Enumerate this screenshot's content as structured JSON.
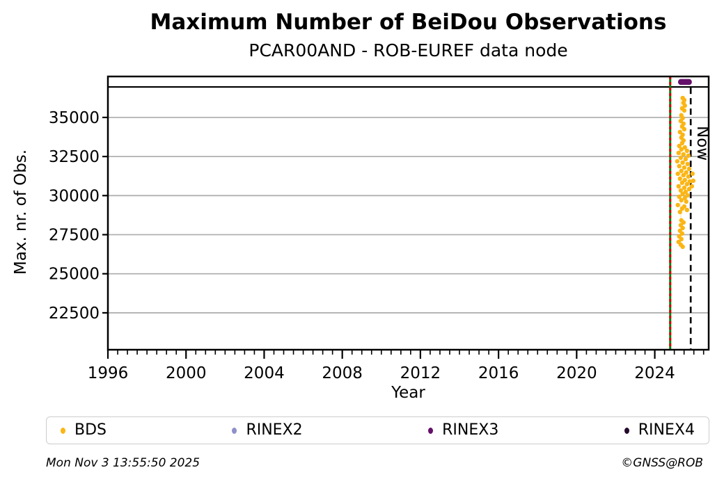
{
  "header": {
    "title": "Maximum Number of BeiDou Observations",
    "subtitle": "PCAR00AND - ROB-EUREF data node"
  },
  "chart_data": {
    "type": "scatter",
    "title": "Maximum Number of BeiDou Observations",
    "subtitle": "PCAR00AND - ROB-EUREF data node",
    "xlabel": "Year",
    "ylabel": "Max. nr. of Obs.",
    "xlim": [
      1996,
      2026.76
    ],
    "ylim": [
      20140,
      37620
    ],
    "x_major_ticks": [
      1996,
      2000,
      2004,
      2008,
      2012,
      2016,
      2020,
      2024
    ],
    "x_minor_step": 0.5,
    "y_ticks": [
      22500,
      25000,
      27500,
      30000,
      32500,
      35000
    ],
    "grid": "horizontal-only",
    "grid_color": "#b0b0b0",
    "frame_color": "#000000",
    "format_band": {
      "divider_value": 36950,
      "rinex3_segment": {
        "start": 2025.19,
        "end": 2025.9,
        "y_value": 37270,
        "color": "#65106a"
      }
    },
    "annotations": {
      "receiver_change_line": {
        "x": 2024.79,
        "solid_color": "#0d7d0d",
        "dash_color": "#d40000"
      },
      "now_line": {
        "x": 2025.84,
        "label": "Now",
        "color": "#000000",
        "style": "dashed"
      }
    },
    "series": [
      {
        "name": "BDS",
        "color": "#fbb615",
        "points": [
          [
            2025.43,
            36245
          ],
          [
            2025.51,
            36110
          ],
          [
            2025.47,
            35935
          ],
          [
            2025.54,
            35755
          ],
          [
            2025.4,
            35580
          ],
          [
            2025.51,
            35445
          ],
          [
            2025.36,
            35135
          ],
          [
            2025.43,
            34955
          ],
          [
            2025.33,
            34775
          ],
          [
            2025.47,
            34600
          ],
          [
            2025.4,
            34420
          ],
          [
            2025.51,
            34245
          ],
          [
            2025.29,
            34065
          ],
          [
            2025.43,
            33890
          ],
          [
            2025.36,
            33710
          ],
          [
            2025.47,
            33530
          ],
          [
            2025.4,
            33355
          ],
          [
            2025.25,
            33175
          ],
          [
            2025.54,
            33085
          ],
          [
            2025.36,
            32955
          ],
          [
            2025.65,
            32865
          ],
          [
            2025.22,
            32730
          ],
          [
            2025.47,
            32640
          ],
          [
            2025.72,
            32555
          ],
          [
            2025.33,
            32420
          ],
          [
            2025.58,
            32330
          ],
          [
            2025.15,
            32195
          ],
          [
            2025.43,
            32110
          ],
          [
            2025.68,
            32020
          ],
          [
            2025.25,
            31885
          ],
          [
            2025.51,
            31795
          ],
          [
            2025.76,
            31710
          ],
          [
            2025.36,
            31575
          ],
          [
            2025.61,
            31485
          ],
          [
            2025.18,
            31395
          ],
          [
            2025.47,
            31305
          ],
          [
            2025.93,
            31400
          ],
          [
            2025.72,
            31220
          ],
          [
            2025.29,
            31085
          ],
          [
            2025.54,
            30995
          ],
          [
            2025.79,
            30905
          ],
          [
            2025.4,
            30820
          ],
          [
            2025.65,
            30730
          ],
          [
            2025.97,
            30950
          ],
          [
            2025.22,
            30595
          ],
          [
            2025.51,
            30505
          ],
          [
            2025.76,
            30415
          ],
          [
            2025.33,
            30330
          ],
          [
            2025.58,
            30240
          ],
          [
            2025.9,
            30600
          ],
          [
            2025.43,
            30105
          ],
          [
            2025.68,
            30015
          ],
          [
            2025.25,
            29930
          ],
          [
            2025.54,
            29840
          ],
          [
            2025.36,
            29705
          ],
          [
            2025.61,
            29615
          ],
          [
            2025.18,
            29395
          ],
          [
            2025.51,
            29305
          ],
          [
            2025.4,
            29170
          ],
          [
            2025.65,
            29080
          ],
          [
            2025.29,
            28950
          ],
          [
            2025.36,
            28415
          ],
          [
            2025.47,
            28280
          ],
          [
            2025.33,
            28105
          ],
          [
            2025.43,
            27925
          ],
          [
            2025.29,
            27750
          ],
          [
            2025.4,
            27570
          ],
          [
            2025.25,
            27390
          ],
          [
            2025.36,
            27215
          ],
          [
            2025.22,
            27035
          ],
          [
            2025.33,
            26860
          ],
          [
            2025.43,
            26725
          ]
        ]
      },
      {
        "name": "RINEX2",
        "color": "#8f90c9",
        "points": []
      },
      {
        "name": "RINEX3",
        "color": "#65106a",
        "points": []
      },
      {
        "name": "RINEX4",
        "color": "#250a2e",
        "points": []
      }
    ]
  },
  "legend": {
    "items": [
      {
        "label": "BDS",
        "color": "#fbb615"
      },
      {
        "label": "RINEX2",
        "color": "#8f90c9"
      },
      {
        "label": "RINEX3",
        "color": "#65106a"
      },
      {
        "label": "RINEX4",
        "color": "#250a2e"
      }
    ]
  },
  "footer": {
    "timestamp": "Mon Nov  3 13:55:50 2025",
    "copyright": "©GNSS@ROB"
  }
}
